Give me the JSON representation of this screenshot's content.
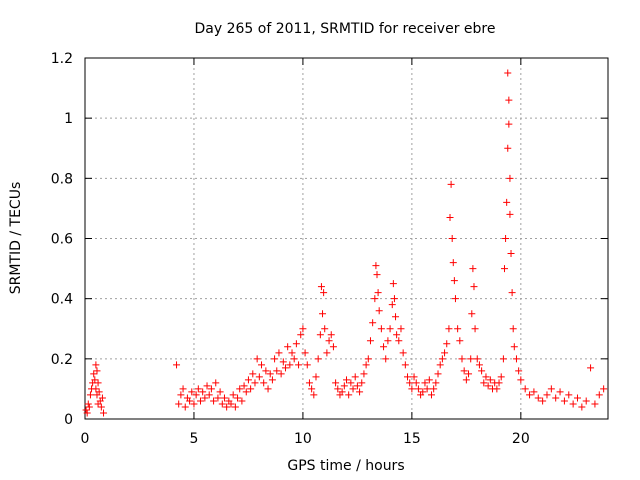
{
  "chart_data": {
    "type": "scatter",
    "title": "Day 265 of 2011, SRMTID for receiver ebre",
    "xlabel": "GPS time / hours",
    "ylabel": "SRMTID / TECUs",
    "xlim": [
      0,
      24
    ],
    "ylim": [
      0,
      1.2
    ],
    "xticks": [
      0,
      5,
      10,
      15,
      20
    ],
    "yticks": [
      0,
      0.2,
      0.4,
      0.6,
      0.8,
      1,
      1.2
    ],
    "xtick_labels": [
      "0",
      "5",
      "10",
      "15",
      "20"
    ],
    "ytick_labels": [
      "0",
      "0.2",
      "0.4",
      "0.6",
      "0.8",
      "1",
      "1.2"
    ],
    "grid": true,
    "marker": "+",
    "color": "#ff0000",
    "series": [
      {
        "name": "SRMTID",
        "x": [
          0.05,
          0.1,
          0.15,
          0.2,
          0.25,
          0.3,
          0.35,
          0.4,
          0.45,
          0.5,
          0.5,
          0.55,
          0.55,
          0.6,
          0.6,
          0.65,
          0.7,
          0.75,
          0.8,
          0.85,
          4.2,
          4.3,
          4.4,
          4.5,
          4.6,
          4.7,
          4.8,
          4.9,
          5.0,
          5.1,
          5.2,
          5.3,
          5.4,
          5.5,
          5.6,
          5.7,
          5.8,
          5.9,
          6.0,
          6.1,
          6.2,
          6.3,
          6.4,
          6.5,
          6.6,
          6.7,
          6.8,
          6.9,
          7.0,
          7.1,
          7.2,
          7.3,
          7.4,
          7.5,
          7.6,
          7.7,
          7.8,
          7.9,
          8.0,
          8.1,
          8.2,
          8.3,
          8.4,
          8.5,
          8.6,
          8.7,
          8.8,
          8.9,
          9.0,
          9.1,
          9.2,
          9.3,
          9.4,
          9.5,
          9.6,
          9.7,
          9.8,
          9.9,
          10.0,
          10.1,
          10.2,
          10.3,
          10.4,
          10.5,
          10.6,
          10.7,
          10.8,
          10.85,
          10.9,
          10.95,
          11.0,
          11.1,
          11.2,
          11.3,
          11.4,
          11.5,
          11.6,
          11.7,
          11.8,
          11.9,
          12.0,
          12.1,
          12.2,
          12.3,
          12.4,
          12.5,
          12.6,
          12.7,
          12.8,
          12.9,
          13.0,
          13.1,
          13.2,
          13.3,
          13.35,
          13.4,
          13.45,
          13.5,
          13.6,
          13.7,
          13.8,
          13.9,
          14.0,
          14.1,
          14.15,
          14.2,
          14.25,
          14.3,
          14.4,
          14.5,
          14.6,
          14.7,
          14.8,
          14.9,
          15.0,
          15.1,
          15.2,
          15.3,
          15.4,
          15.5,
          15.6,
          15.7,
          15.8,
          15.9,
          16.0,
          16.1,
          16.2,
          16.3,
          16.4,
          16.5,
          16.6,
          16.7,
          16.75,
          16.8,
          16.85,
          16.9,
          16.95,
          17.0,
          17.1,
          17.2,
          17.3,
          17.4,
          17.5,
          17.6,
          17.7,
          17.75,
          17.8,
          17.85,
          17.9,
          18.0,
          18.1,
          18.2,
          18.3,
          18.4,
          18.5,
          18.6,
          18.7,
          18.8,
          18.9,
          19.0,
          19.1,
          19.2,
          19.25,
          19.3,
          19.35,
          19.4,
          19.4,
          19.45,
          19.45,
          19.5,
          19.5,
          19.55,
          19.6,
          19.65,
          19.7,
          19.8,
          19.9,
          20.0,
          20.2,
          20.4,
          20.6,
          20.8,
          21.0,
          21.2,
          21.4,
          21.6,
          21.8,
          22.0,
          22.2,
          22.4,
          22.6,
          22.8,
          23.0,
          23.2,
          23.4,
          23.6,
          23.8
        ],
        "y": [
          0.03,
          0.02,
          0.05,
          0.04,
          0.08,
          0.1,
          0.12,
          0.15,
          0.13,
          0.18,
          0.1,
          0.16,
          0.08,
          0.12,
          0.05,
          0.09,
          0.06,
          0.04,
          0.07,
          0.02,
          0.18,
          0.05,
          0.08,
          0.1,
          0.04,
          0.07,
          0.06,
          0.09,
          0.05,
          0.08,
          0.1,
          0.06,
          0.09,
          0.07,
          0.11,
          0.08,
          0.1,
          0.06,
          0.12,
          0.07,
          0.09,
          0.05,
          0.07,
          0.04,
          0.06,
          0.05,
          0.08,
          0.04,
          0.07,
          0.1,
          0.06,
          0.11,
          0.09,
          0.13,
          0.1,
          0.15,
          0.12,
          0.2,
          0.14,
          0.18,
          0.12,
          0.16,
          0.1,
          0.15,
          0.13,
          0.2,
          0.16,
          0.22,
          0.15,
          0.19,
          0.17,
          0.24,
          0.18,
          0.22,
          0.2,
          0.25,
          0.18,
          0.28,
          0.3,
          0.22,
          0.18,
          0.12,
          0.1,
          0.08,
          0.14,
          0.2,
          0.28,
          0.44,
          0.35,
          0.42,
          0.3,
          0.22,
          0.26,
          0.28,
          0.24,
          0.12,
          0.1,
          0.08,
          0.09,
          0.11,
          0.13,
          0.08,
          0.12,
          0.1,
          0.14,
          0.11,
          0.09,
          0.12,
          0.15,
          0.18,
          0.2,
          0.26,
          0.32,
          0.4,
          0.51,
          0.48,
          0.42,
          0.36,
          0.3,
          0.24,
          0.2,
          0.26,
          0.3,
          0.38,
          0.45,
          0.4,
          0.34,
          0.28,
          0.26,
          0.3,
          0.22,
          0.18,
          0.14,
          0.12,
          0.1,
          0.14,
          0.12,
          0.1,
          0.08,
          0.09,
          0.12,
          0.1,
          0.13,
          0.08,
          0.1,
          0.12,
          0.15,
          0.18,
          0.2,
          0.22,
          0.25,
          0.3,
          0.67,
          0.78,
          0.6,
          0.52,
          0.46,
          0.4,
          0.3,
          0.26,
          0.2,
          0.16,
          0.13,
          0.15,
          0.2,
          0.35,
          0.5,
          0.44,
          0.3,
          0.2,
          0.18,
          0.16,
          0.12,
          0.14,
          0.11,
          0.13,
          0.1,
          0.12,
          0.1,
          0.12,
          0.14,
          0.2,
          0.5,
          0.6,
          0.72,
          0.9,
          1.15,
          0.98,
          1.06,
          0.8,
          0.68,
          0.55,
          0.42,
          0.3,
          0.24,
          0.2,
          0.16,
          0.13,
          0.1,
          0.08,
          0.09,
          0.07,
          0.06,
          0.08,
          0.1,
          0.07,
          0.09,
          0.06,
          0.08,
          0.05,
          0.07,
          0.04,
          0.06,
          0.17,
          0.05,
          0.08,
          0.1
        ]
      }
    ]
  }
}
